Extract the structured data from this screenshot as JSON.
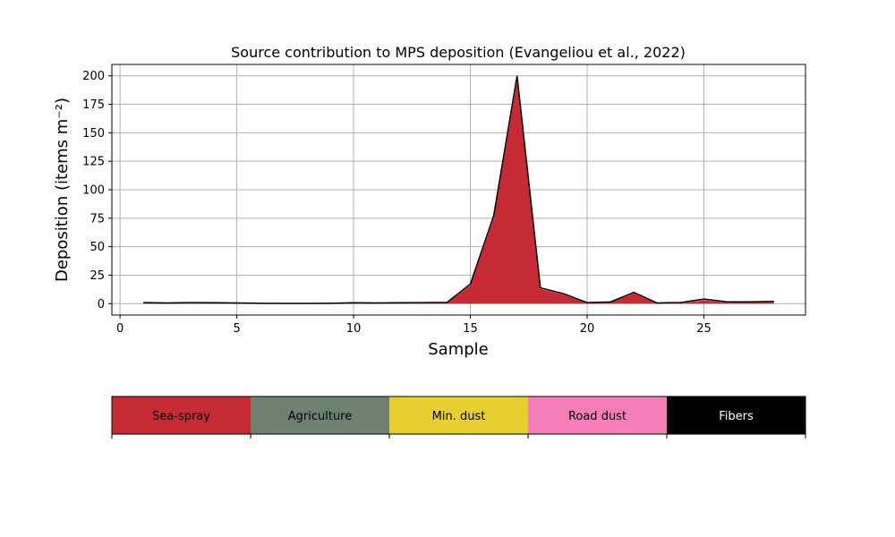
{
  "chart_data": {
    "type": "area",
    "title": "Source contribution to MPS deposition (Evangeliou et al., 2022)",
    "xlabel": "Sample",
    "ylabel": "Deposition (items m⁻²)",
    "xlim": [
      -0.35,
      29.35
    ],
    "ylim": [
      -10,
      210
    ],
    "xticks": [
      0,
      5,
      10,
      15,
      20,
      25
    ],
    "yticks": [
      0,
      25,
      50,
      75,
      100,
      125,
      150,
      175,
      200
    ],
    "grid": true,
    "x": [
      1,
      2,
      3,
      4,
      5,
      6,
      7,
      8,
      9,
      10,
      11,
      12,
      13,
      14,
      15,
      16,
      17,
      18,
      19,
      20,
      21,
      22,
      23,
      24,
      25,
      26,
      27,
      28
    ],
    "series": [
      {
        "name": "Sea-spray",
        "color": "#c62a35",
        "values": [
          0.5,
          0.3,
          0.5,
          0.4,
          0.3,
          0.2,
          0.1,
          0.1,
          0.2,
          0.4,
          0.3,
          0.4,
          0.5,
          0.6,
          16,
          75,
          196,
          13,
          8,
          0.5,
          1,
          9,
          0.3,
          0.5,
          3,
          1,
          1,
          1
        ]
      },
      {
        "name": "Agriculture",
        "color": "#6e8070",
        "values": [
          0,
          0,
          0,
          0,
          0,
          0,
          0,
          0,
          0,
          0,
          0,
          0,
          0,
          0,
          0,
          0,
          0,
          0,
          0,
          0,
          0,
          0,
          0,
          0,
          0,
          0,
          0,
          0
        ]
      },
      {
        "name": "Min. dust",
        "color": "#e6cf2e",
        "values": [
          0,
          0,
          0,
          0,
          0,
          0,
          0,
          0,
          0,
          0,
          0,
          0,
          0,
          0,
          0,
          0,
          0,
          0,
          0,
          0,
          0,
          0,
          0,
          0,
          0,
          0,
          0,
          0
        ]
      },
      {
        "name": "Road dust",
        "color": "#f57eb8",
        "values": [
          0.3,
          0.2,
          0.3,
          0.3,
          0.2,
          0.1,
          0.1,
          0.1,
          0.1,
          0.3,
          0.2,
          0.3,
          0.3,
          0.4,
          0.8,
          1.5,
          2.5,
          0.6,
          0.5,
          0.3,
          0.3,
          0.6,
          0.2,
          0.3,
          0.5,
          0.3,
          0.3,
          0.4
        ]
      },
      {
        "name": "Fibers",
        "color": "#000000",
        "values": [
          0.1,
          0.1,
          0.1,
          0.1,
          0.1,
          0,
          0,
          0,
          0,
          0.1,
          0.1,
          0.1,
          0.1,
          0.1,
          0.4,
          0.8,
          1.5,
          0.3,
          0.2,
          0.1,
          0.2,
          0.3,
          0.1,
          0.2,
          0.5,
          0.3,
          0.3,
          0.6
        ]
      }
    ]
  }
}
